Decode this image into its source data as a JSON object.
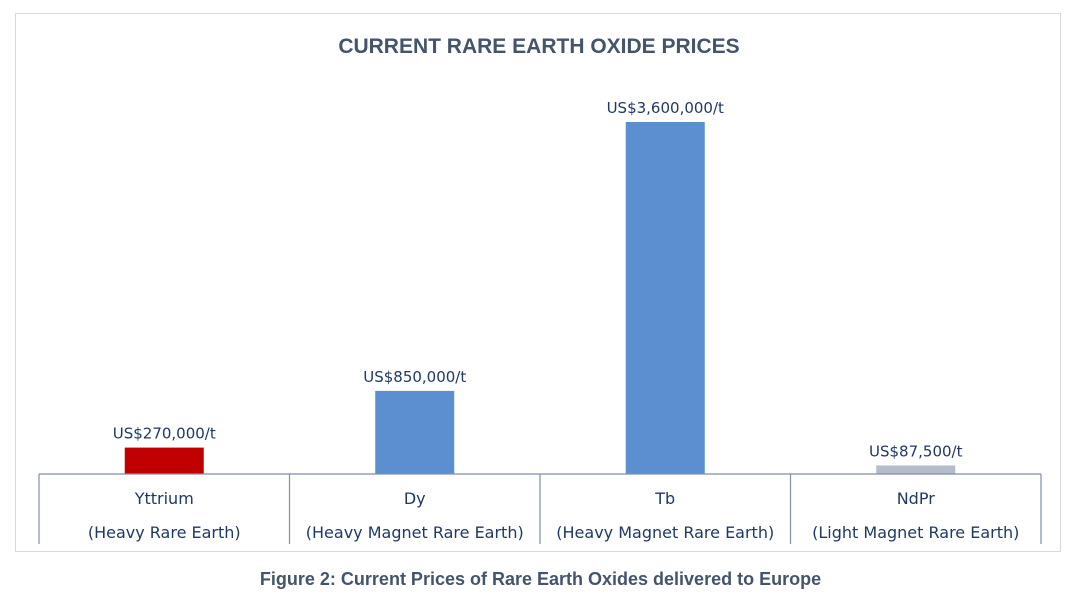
{
  "chart_data": {
    "type": "bar",
    "title": "CURRENT RARE EARTH OXIDE PRICES",
    "categories": [
      {
        "name": "Yttrium",
        "subtitle": "(Heavy Rare Earth)"
      },
      {
        "name": "Dy",
        "subtitle": "(Heavy Magnet Rare Earth)"
      },
      {
        "name": "Tb",
        "subtitle": "(Heavy Magnet Rare Earth)"
      },
      {
        "name": "NdPr",
        "subtitle": "(Light Magnet Rare Earth)"
      }
    ],
    "values": [
      270000,
      850000,
      3600000,
      87500
    ],
    "data_labels": [
      "US$270,000/t",
      "US$850,000/t",
      "US$3,600,000/t",
      "US$87,500/t"
    ],
    "unit": "US$/t",
    "bar_colors": [
      "#c00000",
      "#5b8fcf",
      "#5b8fcf",
      "#b4bdcc"
    ],
    "ylim": [
      0,
      3600000
    ],
    "grid": false,
    "legend": false,
    "xlabel": "",
    "ylabel": ""
  },
  "caption": "Figure 2: Current Prices of Rare Earth Oxides delivered to Europe"
}
